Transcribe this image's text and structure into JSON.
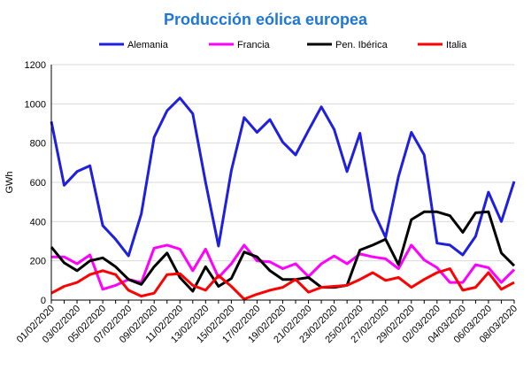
{
  "chart_data": {
    "type": "line",
    "title": "Producción eólica europea",
    "ylabel": "GWh",
    "xlabel": "",
    "ylim": [
      0,
      1200
    ],
    "yticks": [
      0,
      200,
      400,
      600,
      800,
      1000,
      1200
    ],
    "grid": true,
    "legend_position": "top",
    "title_color": "#1f77d4",
    "x": [
      "01/02/2020",
      "02/02/2020",
      "03/02/2020",
      "04/02/2020",
      "05/02/2020",
      "06/02/2020",
      "07/02/2020",
      "08/02/2020",
      "09/02/2020",
      "10/02/2020",
      "11/02/2020",
      "12/02/2020",
      "13/02/2020",
      "14/02/2020",
      "15/02/2020",
      "16/02/2020",
      "17/02/2020",
      "18/02/2020",
      "19/02/2020",
      "20/02/2020",
      "21/02/2020",
      "22/02/2020",
      "23/02/2020",
      "24/02/2020",
      "25/02/2020",
      "26/02/2020",
      "27/02/2020",
      "28/02/2020",
      "29/02/2020",
      "01/03/2020",
      "02/03/2020",
      "03/03/2020",
      "04/03/2020",
      "05/03/2020",
      "06/03/2020",
      "07/03/2020",
      "08/03/2020"
    ],
    "xtick_labels": [
      "01/02/2020",
      "03/02/2020",
      "05/02/2020",
      "07/02/2020",
      "09/02/2020",
      "11/02/2020",
      "13/02/2020",
      "15/02/2020",
      "17/02/2020",
      "19/02/2020",
      "21/02/2020",
      "23/02/2020",
      "25/02/2020",
      "27/02/2020",
      "29/02/2020",
      "02/03/2020",
      "04/03/2020",
      "06/03/2020",
      "08/03/2020"
    ],
    "series": [
      {
        "name": "Alemania",
        "color": "#1f1fe0",
        "values": [
          910,
          585,
          655,
          685,
          380,
          310,
          225,
          440,
          830,
          965,
          1030,
          950,
          600,
          275,
          660,
          930,
          855,
          920,
          805,
          740,
          865,
          985,
          870,
          655,
          850,
          460,
          320,
          630,
          855,
          740,
          290,
          280,
          230,
          325,
          550,
          400,
          605
        ]
      },
      {
        "name": "Francia",
        "color": "#ff00ff",
        "values": [
          220,
          220,
          185,
          230,
          55,
          75,
          105,
          90,
          265,
          280,
          260,
          150,
          260,
          115,
          185,
          280,
          200,
          195,
          160,
          185,
          120,
          185,
          225,
          185,
          235,
          220,
          210,
          160,
          280,
          205,
          165,
          90,
          90,
          180,
          165,
          90,
          155
        ]
      },
      {
        "name": "Pen. Ibérica",
        "color": "#000000",
        "values": [
          270,
          190,
          150,
          200,
          215,
          170,
          105,
          80,
          170,
          240,
          115,
          45,
          170,
          70,
          110,
          245,
          220,
          150,
          105,
          105,
          115,
          65,
          65,
          75,
          255,
          280,
          310,
          180,
          410,
          450,
          450,
          430,
          345,
          445,
          450,
          240,
          175
        ]
      },
      {
        "name": "Italia",
        "color": "#ff0000",
        "values": [
          35,
          70,
          90,
          130,
          150,
          130,
          50,
          20,
          35,
          130,
          135,
          75,
          50,
          125,
          70,
          5,
          30,
          50,
          65,
          105,
          40,
          65,
          70,
          75,
          105,
          140,
          100,
          115,
          65,
          105,
          140,
          160,
          50,
          65,
          140,
          55,
          90
        ]
      }
    ]
  }
}
